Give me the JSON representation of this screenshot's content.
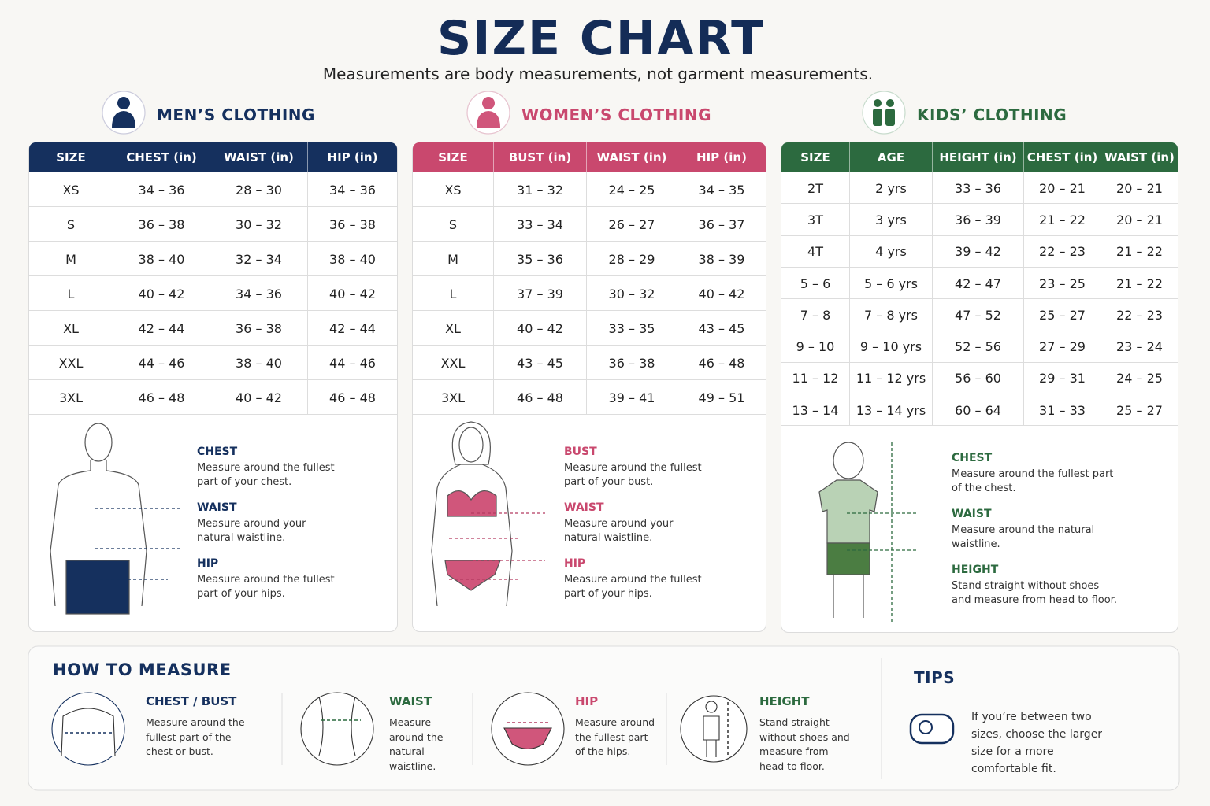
{
  "header": {
    "title": "SIZE CHART",
    "subtitle": "Measurements are body measurements, not garment measurements."
  },
  "sections": [
    {
      "title": "MEN’S CLOTHING",
      "columns": [
        "SIZE",
        "CHEST (in)",
        "WAIST (in)",
        "HIP (in)"
      ],
      "rows": [
        [
          "XS",
          "34 – 36",
          "28 – 30",
          "34 – 36"
        ],
        [
          "S",
          "36 – 38",
          "30 – 32",
          "36 – 38"
        ],
        [
          "M",
          "38 – 40",
          "32 – 34",
          "38 – 40"
        ],
        [
          "L",
          "40 – 42",
          "34 – 36",
          "40 – 42"
        ],
        [
          "XL",
          "42 – 44",
          "36 – 38",
          "42 – 44"
        ],
        [
          "XXL",
          "44 – 46",
          "38 – 40",
          "44 – 46"
        ],
        [
          "3XL",
          "46 – 48",
          "40 – 42",
          "46 – 48"
        ]
      ],
      "guides": [
        {
          "label": "CHEST",
          "text": "Measure around the fullest part of your chest."
        },
        {
          "label": "WAIST",
          "text": "Measure around your natural waistline."
        },
        {
          "label": "HIP",
          "text": "Measure around the fullest part of your hips."
        }
      ]
    },
    {
      "title": "WOMEN’S CLOTHING",
      "columns": [
        "SIZE",
        "BUST (in)",
        "WAIST (in)",
        "HIP (in)"
      ],
      "rows": [
        [
          "XS",
          "31 – 32",
          "24 – 25",
          "34 – 35"
        ],
        [
          "S",
          "33 – 34",
          "26 – 27",
          "36 – 37"
        ],
        [
          "M",
          "35 – 36",
          "28 – 29",
          "38 – 39"
        ],
        [
          "L",
          "37 – 39",
          "30 – 32",
          "40 – 42"
        ],
        [
          "XL",
          "40 – 42",
          "33 – 35",
          "43 – 45"
        ],
        [
          "XXL",
          "43 – 45",
          "36 – 38",
          "46 – 48"
        ],
        [
          "3XL",
          "46 – 48",
          "39 – 41",
          "49 – 51"
        ]
      ],
      "guides": [
        {
          "label": "BUST",
          "text": "Measure around the fullest part of your bust."
        },
        {
          "label": "WAIST",
          "text": "Measure around your natural waistline."
        },
        {
          "label": "HIP",
          "text": "Measure around the fullest part of your hips."
        }
      ]
    },
    {
      "title": "KIDS’ CLOTHING",
      "columns": [
        "SIZE",
        "AGE",
        "HEIGHT (in)",
        "CHEST (in)",
        "WAIST (in)"
      ],
      "rows": [
        [
          "2T",
          "2 yrs",
          "33 – 36",
          "20 – 21",
          "20 – 21"
        ],
        [
          "3T",
          "3 yrs",
          "36 – 39",
          "21 – 22",
          "20 – 21"
        ],
        [
          "4T",
          "4 yrs",
          "39 – 42",
          "22 – 23",
          "21 – 22"
        ],
        [
          "5 – 6",
          "5 – 6 yrs",
          "42 – 47",
          "23 – 25",
          "21 – 22"
        ],
        [
          "7 – 8",
          "7 – 8 yrs",
          "47 – 52",
          "25 – 27",
          "22 – 23"
        ],
        [
          "9 – 10",
          "9 – 10 yrs",
          "52 – 56",
          "27 – 29",
          "23 – 24"
        ],
        [
          "11 – 12",
          "11 – 12 yrs",
          "56 – 60",
          "29 – 31",
          "24 – 25"
        ],
        [
          "13 – 14",
          "13 – 14 yrs",
          "60 – 64",
          "31 – 33",
          "25 – 27"
        ]
      ],
      "guides": [
        {
          "label": "CHEST",
          "text": "Measure around the fullest part of the chest."
        },
        {
          "label": "WAIST",
          "text": "Measure around the natural waistline."
        },
        {
          "label": "HEIGHT",
          "text": "Stand straight without shoes and measure from head to floor."
        }
      ]
    }
  ],
  "how_to_measure": {
    "title": "HOW TO MEASURE",
    "items": [
      {
        "label": "CHEST / BUST",
        "text": "Measure around the fullest part of the chest or bust."
      },
      {
        "label": "WAIST",
        "text": "Measure around the natural waistline."
      },
      {
        "label": "HIP",
        "text": "Measure around the fullest part of the hips."
      },
      {
        "label": "HEIGHT",
        "text": "Stand straight without shoes and measure from head to floor."
      }
    ]
  },
  "tips": {
    "title": "TIPS",
    "text": "If you’re between two sizes, choose the larger size for a more comfortable fit."
  }
}
